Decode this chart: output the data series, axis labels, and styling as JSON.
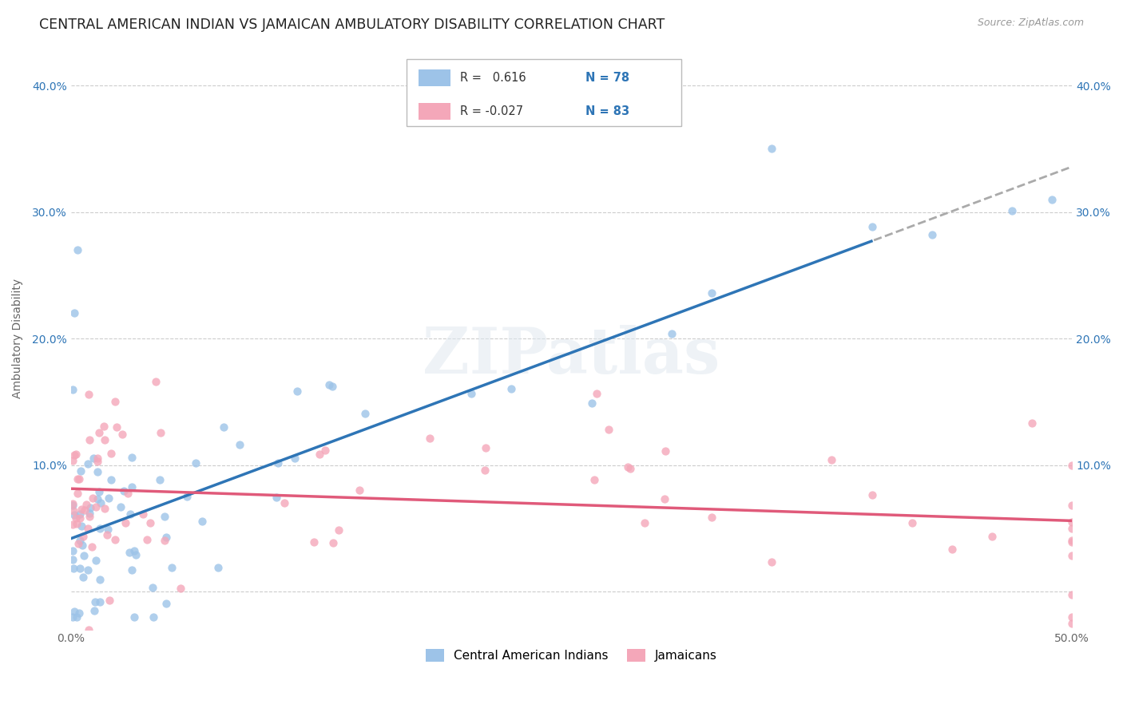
{
  "title": "CENTRAL AMERICAN INDIAN VS JAMAICAN AMBULATORY DISABILITY CORRELATION CHART",
  "source": "Source: ZipAtlas.com",
  "ylabel": "Ambulatory Disability",
  "xlim": [
    0.0,
    0.5
  ],
  "ylim": [
    -0.03,
    0.43
  ],
  "x_ticks": [
    0.0,
    0.1,
    0.2,
    0.3,
    0.4,
    0.5
  ],
  "x_tick_labels": [
    "0.0%",
    "",
    "",
    "",
    "",
    "50.0%"
  ],
  "y_ticks": [
    0.0,
    0.1,
    0.2,
    0.3,
    0.4
  ],
  "y_tick_labels": [
    "",
    "10.0%",
    "20.0%",
    "30.0%",
    "40.0%"
  ],
  "legend_labels": [
    "Central American Indians",
    "Jamaicans"
  ],
  "R_cai": 0.616,
  "N_cai": 78,
  "R_jam": -0.027,
  "N_jam": 83,
  "color_cai": "#9DC3E8",
  "color_jam": "#F4A7B9",
  "trendline_color_cai": "#2E75B6",
  "trendline_color_jam": "#E05A7A",
  "grid_color": "#CCCCCC",
  "background_color": "#FFFFFF",
  "title_fontsize": 12.5,
  "tick_fontsize": 10,
  "watermark": "ZIPatlas",
  "seed": 99
}
